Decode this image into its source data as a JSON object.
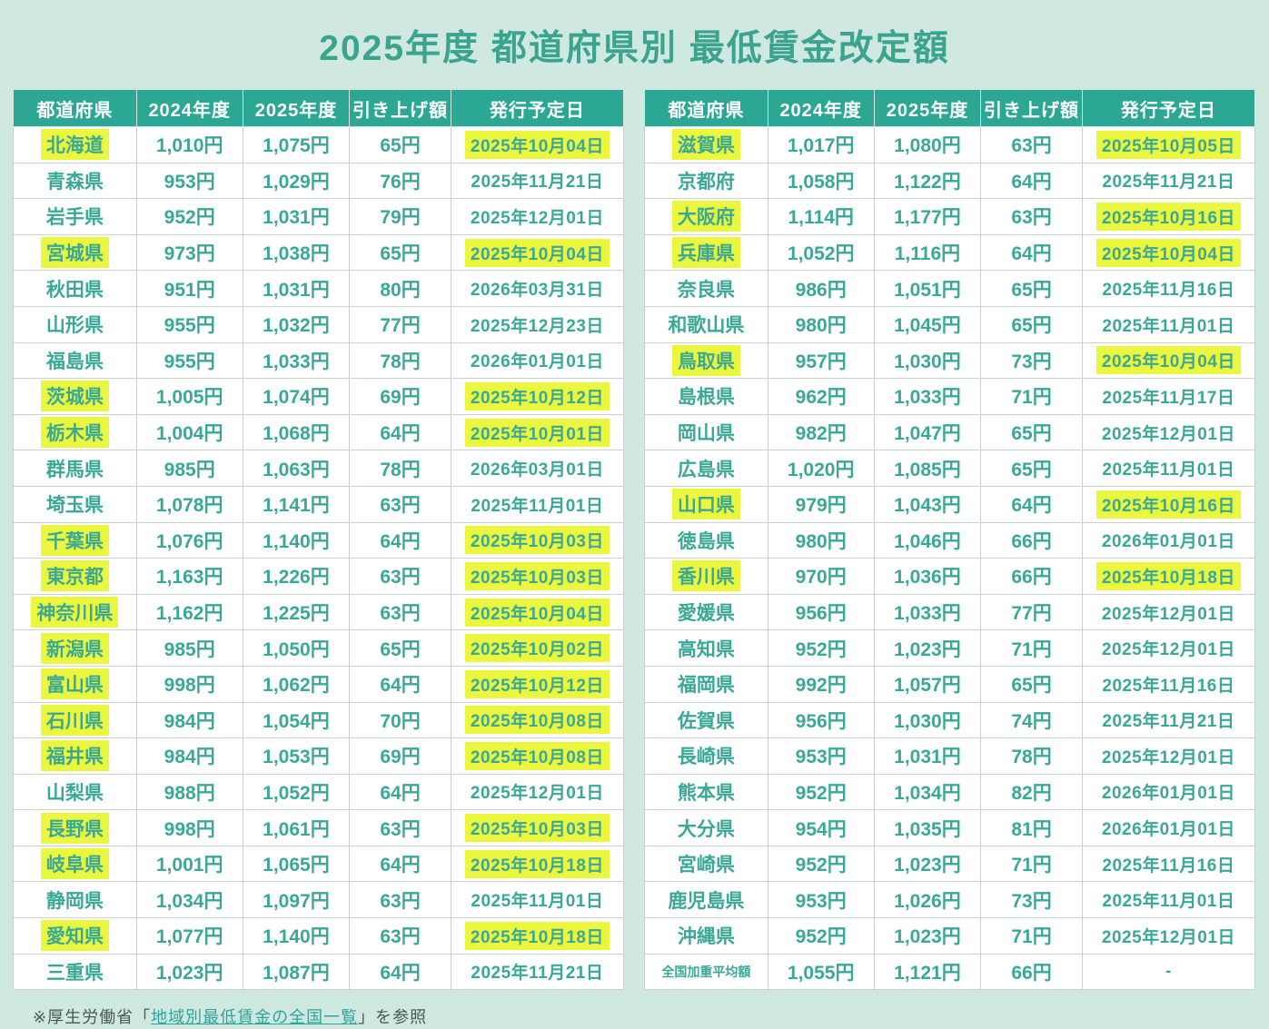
{
  "title": "2025年度 都道府県別 最低賃金改定額",
  "colors": {
    "background": "#cfe8e0",
    "header_bg": "#2ca794",
    "cell_text": "#3aa896",
    "title_text": "#3aa48f",
    "highlight": "#eaf73e",
    "cell_bg": "#ffffff",
    "border": "#c9d2cf",
    "footnote_text": "#4c5855",
    "link": "#2fa49b"
  },
  "columns": [
    "都道府県",
    "2024年度",
    "2025年度",
    "引き上げ額",
    "発行予定日"
  ],
  "tables": [
    {
      "rows": [
        {
          "pref": "北海道",
          "y2024": "1,010円",
          "y2025": "1,075円",
          "raise": "65円",
          "date": "2025年10月04日",
          "highlight": true
        },
        {
          "pref": "青森県",
          "y2024": "953円",
          "y2025": "1,029円",
          "raise": "76円",
          "date": "2025年11月21日",
          "highlight": false
        },
        {
          "pref": "岩手県",
          "y2024": "952円",
          "y2025": "1,031円",
          "raise": "79円",
          "date": "2025年12月01日",
          "highlight": false
        },
        {
          "pref": "宮城県",
          "y2024": "973円",
          "y2025": "1,038円",
          "raise": "65円",
          "date": "2025年10月04日",
          "highlight": true
        },
        {
          "pref": "秋田県",
          "y2024": "951円",
          "y2025": "1,031円",
          "raise": "80円",
          "date": "2026年03月31日",
          "highlight": false
        },
        {
          "pref": "山形県",
          "y2024": "955円",
          "y2025": "1,032円",
          "raise": "77円",
          "date": "2025年12月23日",
          "highlight": false
        },
        {
          "pref": "福島県",
          "y2024": "955円",
          "y2025": "1,033円",
          "raise": "78円",
          "date": "2026年01月01日",
          "highlight": false
        },
        {
          "pref": "茨城県",
          "y2024": "1,005円",
          "y2025": "1,074円",
          "raise": "69円",
          "date": "2025年10月12日",
          "highlight": true
        },
        {
          "pref": "栃木県",
          "y2024": "1,004円",
          "y2025": "1,068円",
          "raise": "64円",
          "date": "2025年10月01日",
          "highlight": true
        },
        {
          "pref": "群馬県",
          "y2024": "985円",
          "y2025": "1,063円",
          "raise": "78円",
          "date": "2026年03月01日",
          "highlight": false
        },
        {
          "pref": "埼玉県",
          "y2024": "1,078円",
          "y2025": "1,141円",
          "raise": "63円",
          "date": "2025年11月01日",
          "highlight": false
        },
        {
          "pref": "千葉県",
          "y2024": "1,076円",
          "y2025": "1,140円",
          "raise": "64円",
          "date": "2025年10月03日",
          "highlight": true
        },
        {
          "pref": "東京都",
          "y2024": "1,163円",
          "y2025": "1,226円",
          "raise": "63円",
          "date": "2025年10月03日",
          "highlight": true
        },
        {
          "pref": "神奈川県",
          "y2024": "1,162円",
          "y2025": "1,225円",
          "raise": "63円",
          "date": "2025年10月04日",
          "highlight": true
        },
        {
          "pref": "新潟県",
          "y2024": "985円",
          "y2025": "1,050円",
          "raise": "65円",
          "date": "2025年10月02日",
          "highlight": true
        },
        {
          "pref": "富山県",
          "y2024": "998円",
          "y2025": "1,062円",
          "raise": "64円",
          "date": "2025年10月12日",
          "highlight": true
        },
        {
          "pref": "石川県",
          "y2024": "984円",
          "y2025": "1,054円",
          "raise": "70円",
          "date": "2025年10月08日",
          "highlight": true
        },
        {
          "pref": "福井県",
          "y2024": "984円",
          "y2025": "1,053円",
          "raise": "69円",
          "date": "2025年10月08日",
          "highlight": true
        },
        {
          "pref": "山梨県",
          "y2024": "988円",
          "y2025": "1,052円",
          "raise": "64円",
          "date": "2025年12月01日",
          "highlight": false
        },
        {
          "pref": "長野県",
          "y2024": "998円",
          "y2025": "1,061円",
          "raise": "63円",
          "date": "2025年10月03日",
          "highlight": true
        },
        {
          "pref": "岐阜県",
          "y2024": "1,001円",
          "y2025": "1,065円",
          "raise": "64円",
          "date": "2025年10月18日",
          "highlight": true
        },
        {
          "pref": "静岡県",
          "y2024": "1,034円",
          "y2025": "1,097円",
          "raise": "63円",
          "date": "2025年11月01日",
          "highlight": false
        },
        {
          "pref": "愛知県",
          "y2024": "1,077円",
          "y2025": "1,140円",
          "raise": "63円",
          "date": "2025年10月18日",
          "highlight": true
        },
        {
          "pref": "三重県",
          "y2024": "1,023円",
          "y2025": "1,087円",
          "raise": "64円",
          "date": "2025年11月21日",
          "highlight": false
        }
      ]
    },
    {
      "rows": [
        {
          "pref": "滋賀県",
          "y2024": "1,017円",
          "y2025": "1,080円",
          "raise": "63円",
          "date": "2025年10月05日",
          "highlight": true
        },
        {
          "pref": "京都府",
          "y2024": "1,058円",
          "y2025": "1,122円",
          "raise": "64円",
          "date": "2025年11月21日",
          "highlight": false
        },
        {
          "pref": "大阪府",
          "y2024": "1,114円",
          "y2025": "1,177円",
          "raise": "63円",
          "date": "2025年10月16日",
          "highlight": true
        },
        {
          "pref": "兵庫県",
          "y2024": "1,052円",
          "y2025": "1,116円",
          "raise": "64円",
          "date": "2025年10月04日",
          "highlight": true
        },
        {
          "pref": "奈良県",
          "y2024": "986円",
          "y2025": "1,051円",
          "raise": "65円",
          "date": "2025年11月16日",
          "highlight": false
        },
        {
          "pref": "和歌山県",
          "y2024": "980円",
          "y2025": "1,045円",
          "raise": "65円",
          "date": "2025年11月01日",
          "highlight": false
        },
        {
          "pref": "鳥取県",
          "y2024": "957円",
          "y2025": "1,030円",
          "raise": "73円",
          "date": "2025年10月04日",
          "highlight": true
        },
        {
          "pref": "島根県",
          "y2024": "962円",
          "y2025": "1,033円",
          "raise": "71円",
          "date": "2025年11月17日",
          "highlight": false
        },
        {
          "pref": "岡山県",
          "y2024": "982円",
          "y2025": "1,047円",
          "raise": "65円",
          "date": "2025年12月01日",
          "highlight": false
        },
        {
          "pref": "広島県",
          "y2024": "1,020円",
          "y2025": "1,085円",
          "raise": "65円",
          "date": "2025年11月01日",
          "highlight": false
        },
        {
          "pref": "山口県",
          "y2024": "979円",
          "y2025": "1,043円",
          "raise": "64円",
          "date": "2025年10月16日",
          "highlight": true
        },
        {
          "pref": "徳島県",
          "y2024": "980円",
          "y2025": "1,046円",
          "raise": "66円",
          "date": "2026年01月01日",
          "highlight": false
        },
        {
          "pref": "香川県",
          "y2024": "970円",
          "y2025": "1,036円",
          "raise": "66円",
          "date": "2025年10月18日",
          "highlight": true
        },
        {
          "pref": "愛媛県",
          "y2024": "956円",
          "y2025": "1,033円",
          "raise": "77円",
          "date": "2025年12月01日",
          "highlight": false
        },
        {
          "pref": "高知県",
          "y2024": "952円",
          "y2025": "1,023円",
          "raise": "71円",
          "date": "2025年12月01日",
          "highlight": false
        },
        {
          "pref": "福岡県",
          "y2024": "992円",
          "y2025": "1,057円",
          "raise": "65円",
          "date": "2025年11月16日",
          "highlight": false
        },
        {
          "pref": "佐賀県",
          "y2024": "956円",
          "y2025": "1,030円",
          "raise": "74円",
          "date": "2025年11月21日",
          "highlight": false
        },
        {
          "pref": "長崎県",
          "y2024": "953円",
          "y2025": "1,031円",
          "raise": "78円",
          "date": "2025年12月01日",
          "highlight": false
        },
        {
          "pref": "熊本県",
          "y2024": "952円",
          "y2025": "1,034円",
          "raise": "82円",
          "date": "2026年01月01日",
          "highlight": false
        },
        {
          "pref": "大分県",
          "y2024": "954円",
          "y2025": "1,035円",
          "raise": "81円",
          "date": "2026年01月01日",
          "highlight": false
        },
        {
          "pref": "宮崎県",
          "y2024": "952円",
          "y2025": "1,023円",
          "raise": "71円",
          "date": "2025年11月16日",
          "highlight": false
        },
        {
          "pref": "鹿児島県",
          "y2024": "953円",
          "y2025": "1,026円",
          "raise": "73円",
          "date": "2025年11月01日",
          "highlight": false
        },
        {
          "pref": "沖縄県",
          "y2024": "952円",
          "y2025": "1,023円",
          "raise": "71円",
          "date": "2025年12月01日",
          "highlight": false
        },
        {
          "pref": "全国加重平均額",
          "y2024": "1,055円",
          "y2025": "1,121円",
          "raise": "66円",
          "date": "-",
          "highlight": false,
          "small": true
        }
      ]
    }
  ],
  "footnote": {
    "prefix": "※厚生労働省「",
    "link_text": "地域別最低賃金の全国一覧",
    "suffix": "」を参照"
  }
}
